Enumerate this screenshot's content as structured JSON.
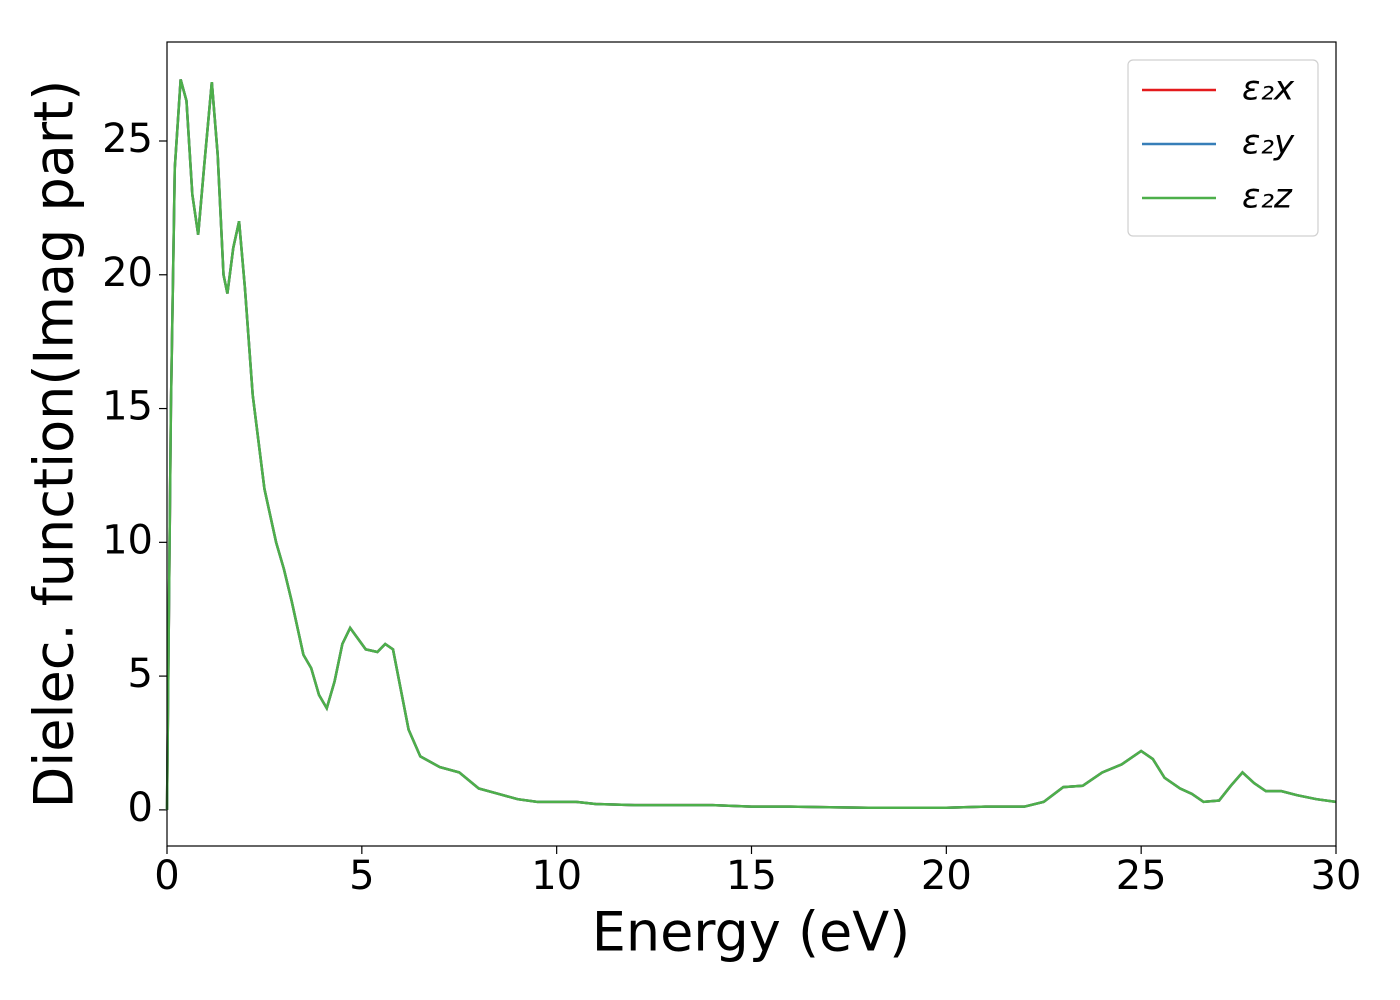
{
  "chart_data": {
    "type": "line",
    "xlabel": "Energy (eV)",
    "ylabel": "Dielec. function(Imag part)",
    "x": [
      0,
      0.1,
      0.2,
      0.35,
      0.5,
      0.65,
      0.8,
      0.95,
      1.15,
      1.3,
      1.45,
      1.55,
      1.7,
      1.85,
      2.0,
      2.2,
      2.5,
      2.8,
      3.0,
      3.2,
      3.5,
      3.7,
      3.9,
      4.1,
      4.3,
      4.5,
      4.7,
      4.9,
      5.1,
      5.4,
      5.6,
      5.8,
      6.0,
      6.2,
      6.5,
      7.0,
      7.5,
      8.0,
      8.5,
      9.0,
      9.5,
      10,
      10.5,
      11,
      12,
      13,
      14,
      15,
      16,
      17,
      18,
      19,
      20,
      21,
      22,
      22.5,
      23,
      23.5,
      24,
      24.5,
      25,
      25.3,
      25.6,
      26.0,
      26.3,
      26.6,
      27.0,
      27.3,
      27.6,
      27.9,
      28.2,
      28.6,
      29.0,
      29.5,
      30
    ],
    "series": [
      {
        "name": "ε₂x",
        "color": "#e41a1c",
        "values": [
          0,
          15,
          24,
          27.3,
          26.5,
          23,
          21.5,
          24,
          27.2,
          24.5,
          20,
          19.3,
          21,
          22,
          19.5,
          15.5,
          12,
          10,
          9,
          7.8,
          5.8,
          5.3,
          4.3,
          3.8,
          4.8,
          6.2,
          6.8,
          6.4,
          6.0,
          5.9,
          6.2,
          6.0,
          4.5,
          3.0,
          2.0,
          1.6,
          1.4,
          0.8,
          0.6,
          0.4,
          0.3,
          0.3,
          0.3,
          0.22,
          0.18,
          0.18,
          0.18,
          0.12,
          0.12,
          0.1,
          0.08,
          0.08,
          0.08,
          0.12,
          0.12,
          0.3,
          0.85,
          0.9,
          1.4,
          1.7,
          2.2,
          1.9,
          1.2,
          0.8,
          0.6,
          0.3,
          0.35,
          0.9,
          1.4,
          1.0,
          0.7,
          0.7,
          0.55,
          0.4,
          0.3
        ]
      },
      {
        "name": "ε₂y",
        "color": "#377eb8",
        "values": [
          0,
          15,
          24,
          27.3,
          26.5,
          23,
          21.5,
          24,
          27.2,
          24.5,
          20,
          19.3,
          21,
          22,
          19.5,
          15.5,
          12,
          10,
          9,
          7.8,
          5.8,
          5.3,
          4.3,
          3.8,
          4.8,
          6.2,
          6.8,
          6.4,
          6.0,
          5.9,
          6.2,
          6.0,
          4.5,
          3.0,
          2.0,
          1.6,
          1.4,
          0.8,
          0.6,
          0.4,
          0.3,
          0.3,
          0.3,
          0.22,
          0.18,
          0.18,
          0.18,
          0.12,
          0.12,
          0.1,
          0.08,
          0.08,
          0.08,
          0.12,
          0.12,
          0.3,
          0.85,
          0.9,
          1.4,
          1.7,
          2.2,
          1.9,
          1.2,
          0.8,
          0.6,
          0.3,
          0.35,
          0.9,
          1.4,
          1.0,
          0.7,
          0.7,
          0.55,
          0.4,
          0.3
        ]
      },
      {
        "name": "ε₂z",
        "color": "#4daf4a",
        "values": [
          0,
          15,
          24,
          27.3,
          26.5,
          23,
          21.5,
          24,
          27.2,
          24.5,
          20,
          19.3,
          21,
          22,
          19.5,
          15.5,
          12,
          10,
          9,
          7.8,
          5.8,
          5.3,
          4.3,
          3.8,
          4.8,
          6.2,
          6.8,
          6.4,
          6.0,
          5.9,
          6.2,
          6.0,
          4.5,
          3.0,
          2.0,
          1.6,
          1.4,
          0.8,
          0.6,
          0.4,
          0.3,
          0.3,
          0.3,
          0.22,
          0.18,
          0.18,
          0.18,
          0.12,
          0.12,
          0.1,
          0.08,
          0.08,
          0.08,
          0.12,
          0.12,
          0.3,
          0.85,
          0.9,
          1.4,
          1.7,
          2.2,
          1.9,
          1.2,
          0.8,
          0.6,
          0.3,
          0.35,
          0.9,
          1.4,
          1.0,
          0.7,
          0.7,
          0.55,
          0.4,
          0.3
        ]
      }
    ],
    "xlim": [
      0,
      30
    ],
    "xticks": [
      0,
      5,
      10,
      15,
      20,
      25,
      30
    ],
    "ylim": [
      -1.35,
      28.7
    ],
    "yticks": [
      0,
      5,
      10,
      15,
      20,
      25
    ],
    "legend": "upper right",
    "grid": false
  }
}
